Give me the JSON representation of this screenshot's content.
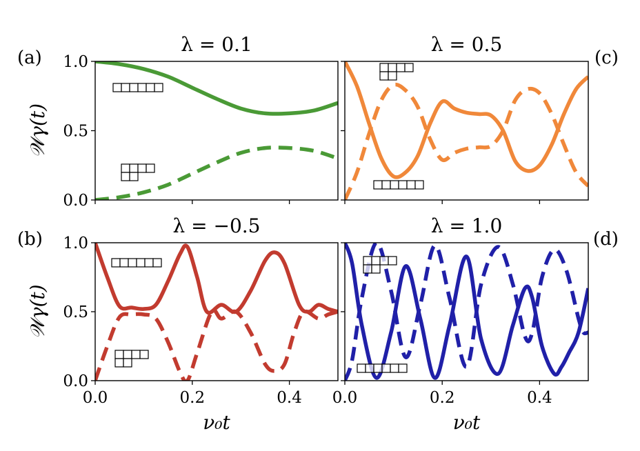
{
  "chart_data": [
    {
      "type": "line",
      "panel_label": "(a)",
      "title": "λ = 0.1",
      "color": "#4a9a36",
      "xlabel": "",
      "ylabel": "𝒲γ(t)",
      "xlim": [
        0,
        0.5
      ],
      "ylim": [
        0,
        1
      ],
      "xticks": [
        "0.0",
        "0.2",
        "0.4"
      ],
      "yticks": [
        "0.0",
        "0.5",
        "1.0"
      ],
      "series": [
        {
          "name": "[6]",
          "style": "solid",
          "young": [
            6
          ],
          "x": [
            0,
            0.05,
            0.1,
            0.15,
            0.2,
            0.25,
            0.3,
            0.35,
            0.4,
            0.45,
            0.5
          ],
          "y": [
            1.0,
            0.98,
            0.945,
            0.89,
            0.81,
            0.73,
            0.66,
            0.625,
            0.625,
            0.645,
            0.7
          ]
        },
        {
          "name": "[4,2]",
          "style": "dashed",
          "young": [
            4,
            2
          ],
          "x": [
            0,
            0.05,
            0.1,
            0.15,
            0.2,
            0.25,
            0.3,
            0.35,
            0.4,
            0.45,
            0.5
          ],
          "y": [
            0.0,
            0.02,
            0.055,
            0.11,
            0.19,
            0.27,
            0.34,
            0.375,
            0.375,
            0.355,
            0.3
          ]
        }
      ]
    },
    {
      "type": "line",
      "panel_label": "(c)",
      "title": "λ = 0.5",
      "color": "#f0883a",
      "xlabel": "",
      "ylabel": "",
      "xlim": [
        0,
        0.5
      ],
      "ylim": [
        0,
        1
      ],
      "xticks": [
        "0.0",
        "0.2",
        "0.4"
      ],
      "yticks": [
        "0.0",
        "0.5",
        "1.0"
      ],
      "series": [
        {
          "name": "[6]",
          "style": "solid",
          "young": [
            6
          ],
          "x": [
            0,
            0.025,
            0.05,
            0.075,
            0.1,
            0.125,
            0.15,
            0.175,
            0.2,
            0.225,
            0.25,
            0.275,
            0.3,
            0.325,
            0.35,
            0.375,
            0.4,
            0.425,
            0.45,
            0.475,
            0.5
          ],
          "y": [
            1.0,
            0.82,
            0.55,
            0.3,
            0.17,
            0.2,
            0.32,
            0.55,
            0.71,
            0.66,
            0.63,
            0.62,
            0.61,
            0.5,
            0.28,
            0.21,
            0.25,
            0.4,
            0.62,
            0.8,
            0.89
          ]
        },
        {
          "name": "[4,2]",
          "style": "dashed",
          "young": [
            4,
            2
          ],
          "x": [
            0,
            0.025,
            0.05,
            0.075,
            0.1,
            0.125,
            0.15,
            0.175,
            0.2,
            0.225,
            0.25,
            0.275,
            0.3,
            0.325,
            0.35,
            0.375,
            0.4,
            0.425,
            0.45,
            0.475,
            0.5
          ],
          "y": [
            0.0,
            0.2,
            0.48,
            0.72,
            0.83,
            0.79,
            0.67,
            0.44,
            0.29,
            0.34,
            0.37,
            0.38,
            0.39,
            0.5,
            0.72,
            0.8,
            0.77,
            0.62,
            0.4,
            0.2,
            0.1
          ]
        }
      ]
    },
    {
      "type": "line",
      "panel_label": "(b)",
      "title": "λ = −0.5",
      "color": "#c23b2f",
      "xlabel": "ν₀t",
      "ylabel": "𝒲γ(t)",
      "xlim": [
        0,
        0.5
      ],
      "ylim": [
        0,
        1
      ],
      "xticks": [
        "0.0",
        "0.2",
        "0.4"
      ],
      "yticks": [
        "0.0",
        "0.5",
        "1.0"
      ],
      "series": [
        {
          "name": "[6]",
          "style": "solid",
          "young": [
            6
          ],
          "x": [
            0,
            0.025,
            0.05,
            0.075,
            0.1,
            0.125,
            0.15,
            0.175,
            0.19,
            0.21,
            0.23,
            0.26,
            0.29,
            0.32,
            0.35,
            0.37,
            0.39,
            0.42,
            0.44,
            0.46,
            0.48,
            0.5
          ],
          "y": [
            1.0,
            0.75,
            0.54,
            0.53,
            0.52,
            0.55,
            0.72,
            0.92,
            0.97,
            0.75,
            0.5,
            0.55,
            0.5,
            0.65,
            0.87,
            0.93,
            0.85,
            0.55,
            0.5,
            0.55,
            0.52,
            0.5
          ]
        },
        {
          "name": "[4,2]",
          "style": "dashed",
          "young": [
            4,
            2
          ],
          "x": [
            0,
            0.025,
            0.05,
            0.075,
            0.1,
            0.125,
            0.15,
            0.175,
            0.19,
            0.21,
            0.24,
            0.26,
            0.29,
            0.32,
            0.35,
            0.37,
            0.39,
            0.41,
            0.43,
            0.46,
            0.48,
            0.5
          ],
          "y": [
            0.0,
            0.25,
            0.46,
            0.48,
            0.48,
            0.45,
            0.28,
            0.06,
            0.0,
            0.2,
            0.5,
            0.45,
            0.5,
            0.35,
            0.12,
            0.07,
            0.12,
            0.35,
            0.5,
            0.45,
            0.48,
            0.5
          ]
        }
      ]
    },
    {
      "type": "line",
      "panel_label": "(d)",
      "title": "λ = 1.0",
      "color": "#2020a8",
      "xlabel": "ν₀t",
      "ylabel": "",
      "xlim": [
        0,
        0.5
      ],
      "ylim": [
        0,
        1
      ],
      "xticks": [
        "0.0",
        "0.2",
        "0.4"
      ],
      "yticks": [
        "0.0",
        "0.5",
        "1.0"
      ],
      "series": [
        {
          "name": "[6]",
          "style": "solid",
          "young": [
            6
          ],
          "x": [
            0,
            0.015,
            0.035,
            0.065,
            0.095,
            0.125,
            0.155,
            0.185,
            0.215,
            0.25,
            0.28,
            0.315,
            0.345,
            0.37,
            0.385,
            0.405,
            0.43,
            0.445,
            0.46,
            0.48,
            0.5
          ],
          "y": [
            1.0,
            0.85,
            0.4,
            0.02,
            0.35,
            0.83,
            0.45,
            0.02,
            0.4,
            0.9,
            0.3,
            0.05,
            0.4,
            0.67,
            0.6,
            0.25,
            0.05,
            0.1,
            0.2,
            0.35,
            0.67
          ]
        },
        {
          "name": "[4,2]",
          "style": "dashed",
          "young": [
            4,
            2
          ],
          "x": [
            0,
            0.015,
            0.035,
            0.065,
            0.095,
            0.125,
            0.155,
            0.185,
            0.215,
            0.25,
            0.28,
            0.315,
            0.345,
            0.37,
            0.385,
            0.405,
            0.43,
            0.455,
            0.48,
            0.49,
            0.5
          ],
          "y": [
            0.0,
            0.15,
            0.6,
            1.0,
            0.65,
            0.17,
            0.55,
            0.98,
            0.6,
            0.1,
            0.7,
            0.97,
            0.7,
            0.32,
            0.35,
            0.75,
            0.95,
            0.8,
            0.45,
            0.35,
            0.35
          ]
        }
      ]
    }
  ]
}
